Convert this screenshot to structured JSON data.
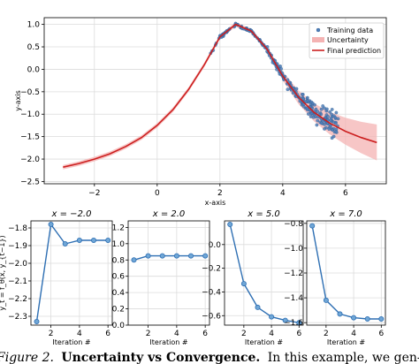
{
  "chart_data": [
    {
      "type": "scatter",
      "xlabel": "x-axis",
      "ylabel": "y-axis",
      "xlim": [
        -3.6,
        7.3
      ],
      "ylim": [
        -2.55,
        1.15
      ],
      "xticks": [
        "−2",
        "0",
        "2",
        "4",
        "6"
      ],
      "xtick_values": [
        -2,
        0,
        2,
        4,
        6
      ],
      "yticks": [
        "1.0",
        "0.5",
        "0.0",
        "−0.5",
        "−1.0",
        "−1.5",
        "−2.0",
        "−2.5"
      ],
      "ytick_values": [
        1.0,
        0.5,
        0.0,
        -0.5,
        -1.0,
        -1.5,
        -2.0,
        -2.5
      ],
      "grid": true,
      "legend_position": "top-right",
      "legend": [
        "Training data",
        "Uncertainty",
        "Final prediction"
      ],
      "series": [
        {
          "name": "Training data",
          "kind": "scatter",
          "x_range": [
            1.7,
            5.8
          ],
          "color": "#4f7fb8"
        },
        {
          "name": "Uncertainty",
          "kind": "band",
          "color": "#f4b3b3"
        },
        {
          "name": "Final prediction",
          "kind": "line",
          "color": "#cc1f1f",
          "x": [
            -3.0,
            -2.5,
            -2.0,
            -1.5,
            -1.0,
            -0.5,
            0.0,
            0.5,
            1.0,
            1.5,
            2.0,
            2.5,
            3.0,
            3.5,
            4.0,
            4.5,
            5.0,
            5.5,
            6.0,
            6.5,
            7.0
          ],
          "y": [
            -2.18,
            -2.1,
            -2.0,
            -1.88,
            -1.72,
            -1.52,
            -1.25,
            -0.9,
            -0.45,
            0.1,
            0.72,
            1.0,
            0.85,
            0.45,
            -0.15,
            -0.62,
            -0.96,
            -1.2,
            -1.38,
            -1.52,
            -1.63
          ]
        }
      ]
    },
    {
      "type": "line",
      "title": "x = −2.0",
      "xlabel": "Iteration #",
      "ylabel": "y_t = f_θ(x, y_{t−1})",
      "x": [
        1,
        2,
        3,
        4,
        5,
        6
      ],
      "y": [
        -2.33,
        -1.78,
        -1.89,
        -1.87,
        -1.87,
        -1.87
      ],
      "ylim": [
        -2.35,
        -1.76
      ],
      "xticks": [
        "2",
        "4",
        "6"
      ],
      "xtick_values": [
        2,
        4,
        6
      ],
      "yticks": [
        "−1.8",
        "−1.9",
        "−2.0",
        "−2.1",
        "−2.2",
        "−2.3"
      ],
      "ytick_values": [
        -1.8,
        -1.9,
        -2.0,
        -2.1,
        -2.2,
        -2.3
      ]
    },
    {
      "type": "line",
      "title": "x = 2.0",
      "xlabel": "Iteration #",
      "x": [
        1,
        2,
        3,
        4,
        5,
        6
      ],
      "y": [
        0.8,
        0.85,
        0.85,
        0.85,
        0.85,
        0.85
      ],
      "ylim": [
        0.0,
        1.28
      ],
      "xticks": [
        "2",
        "4",
        "6"
      ],
      "xtick_values": [
        2,
        4,
        6
      ],
      "yticks": [
        "1.2",
        "1.0",
        "0.8",
        "0.6",
        "0.4",
        "0.2",
        "0.0"
      ],
      "ytick_values": [
        1.2,
        1.0,
        0.8,
        0.6,
        0.4,
        0.2,
        0.0
      ]
    },
    {
      "type": "line",
      "title": "x = 5.0",
      "xlabel": "Iteration #",
      "x": [
        1,
        2,
        3,
        4,
        5,
        6
      ],
      "y": [
        0.17,
        -0.33,
        -0.53,
        -0.61,
        -0.64,
        -0.66
      ],
      "ylim": [
        -0.68,
        0.2
      ],
      "xticks": [
        "2",
        "4",
        "6"
      ],
      "xtick_values": [
        2,
        4,
        6
      ],
      "yticks": [
        "0.0",
        "−0.2",
        "−0.4",
        "−0.6"
      ],
      "ytick_values": [
        0.0,
        -0.2,
        -0.4,
        -0.6
      ]
    },
    {
      "type": "line",
      "title": "x = 7.0",
      "xlabel": "Iteration #",
      "x": [
        1,
        2,
        3,
        4,
        5,
        6
      ],
      "y": [
        -0.82,
        -1.42,
        -1.53,
        -1.56,
        -1.57,
        -1.57
      ],
      "ylim": [
        -1.62,
        -0.78
      ],
      "xticks": [
        "2",
        "4",
        "6"
      ],
      "xtick_values": [
        2,
        4,
        6
      ],
      "yticks": [
        "−0.8",
        "−1.0",
        "−1.2",
        "−1.4",
        "−1.6"
      ],
      "ytick_values": [
        -0.8,
        -1.0,
        -1.2,
        -1.4,
        -1.6
      ]
    }
  ],
  "caption": {
    "label": "Figure 2.",
    "title": "Uncertainty vs Convergence.",
    "text": "In this example, we gen-"
  }
}
